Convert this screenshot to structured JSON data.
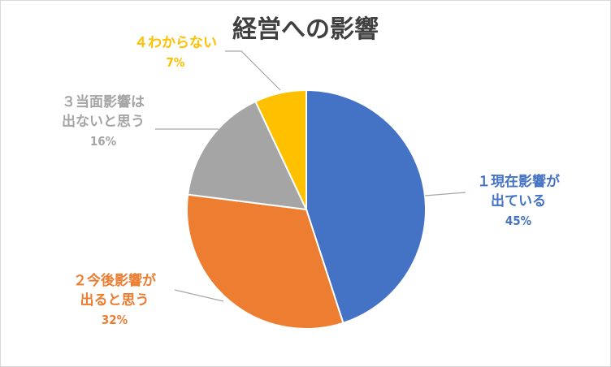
{
  "chart_data": {
    "type": "pie",
    "title": "経営への影響",
    "slices": [
      {
        "label_lines": [
          "１現在影響が",
          "出ている"
        ],
        "value": 45,
        "value_label": "45%",
        "color": "#4472C4"
      },
      {
        "label_lines": [
          "２今後影響が",
          "出ると思う"
        ],
        "value": 32,
        "value_label": "32%",
        "color": "#ED7D31"
      },
      {
        "label_lines": [
          "３当面影響は",
          "出ないと思う"
        ],
        "value": 16,
        "value_label": "16%",
        "color": "#A5A5A5"
      },
      {
        "label_lines": [
          "４わからない"
        ],
        "value": 7,
        "value_label": "7%",
        "color": "#FFC000"
      }
    ],
    "start_angle": "12 o'clock",
    "direction": "clockwise",
    "legend": "none",
    "data_labels": "outside with leader lines"
  }
}
